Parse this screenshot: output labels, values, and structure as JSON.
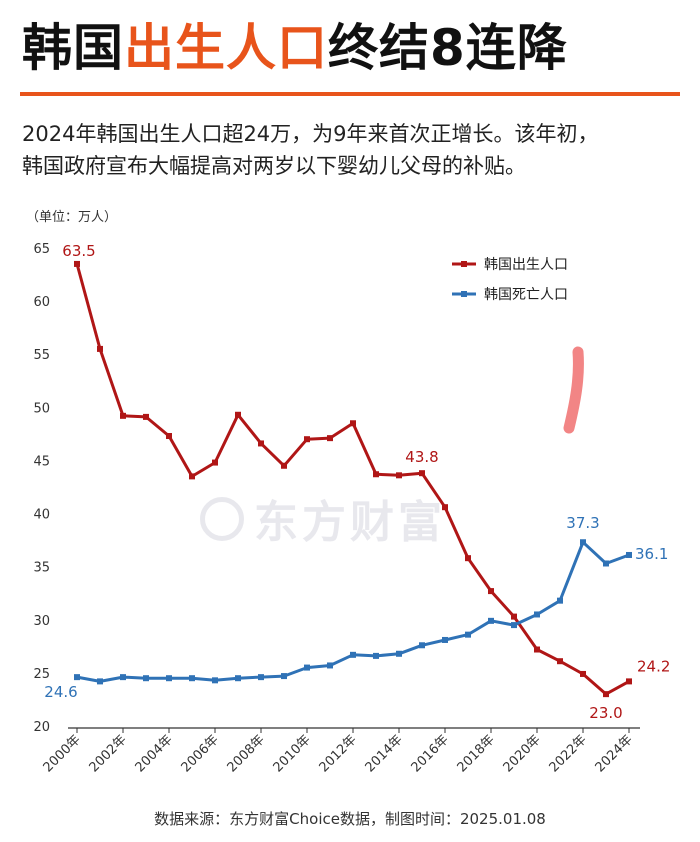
{
  "header": {
    "title_pre": "韩国",
    "title_accent": "出生人口",
    "title_post": "终结8连降",
    "subtitle_line1": "2024年韩国出生人口超24万，为9年来首次正增长。该年初，",
    "subtitle_line2": "韩国政府宣布大幅提高对两岁以下婴幼儿父母的补贴。"
  },
  "watermark": "东方财富",
  "footer": {
    "source": "数据来源：东方财富Choice数据，制图时间：2025.01.08"
  },
  "colors": {
    "births": "#b01616",
    "deaths": "#2f72b6",
    "accent": "#e8541b",
    "annotation": "#f07070"
  },
  "chart_data": {
    "type": "line",
    "unit_label": "（单位：万人）",
    "x": [
      "2000年",
      "2001年",
      "2002年",
      "2003年",
      "2004年",
      "2005年",
      "2006年",
      "2007年",
      "2008年",
      "2009年",
      "2010年",
      "2011年",
      "2012年",
      "2013年",
      "2014年",
      "2015年",
      "2016年",
      "2017年",
      "2018年",
      "2019年",
      "2020年",
      "2021年",
      "2022年",
      "2023年",
      "2024年"
    ],
    "xtick_labels": [
      "2000年",
      "2002年",
      "2004年",
      "2006年",
      "2008年",
      "2010年",
      "2012年",
      "2014年",
      "2016年",
      "2018年",
      "2020年",
      "2022年",
      "2024年"
    ],
    "ylim": [
      20,
      65
    ],
    "yticks": [
      "20",
      "25",
      "30",
      "35",
      "40",
      "45",
      "50",
      "55",
      "60",
      "65"
    ],
    "grid": false,
    "legend_position": "top-right",
    "series": [
      {
        "name": "韩国出生人口",
        "color": "#b01616",
        "values": [
          63.5,
          55.5,
          49.2,
          49.1,
          47.3,
          43.5,
          44.8,
          49.3,
          46.6,
          44.5,
          47.0,
          47.1,
          48.5,
          43.7,
          43.6,
          43.8,
          40.6,
          35.8,
          32.7,
          30.3,
          27.2,
          26.1,
          24.9,
          23.0,
          24.2
        ],
        "labels": [
          {
            "index": 0,
            "text": "63.5"
          },
          {
            "index": 15,
            "text": "43.8"
          },
          {
            "index": 23,
            "text": "23.0"
          },
          {
            "index": 24,
            "text": "24.2"
          }
        ]
      },
      {
        "name": "韩国死亡人口",
        "color": "#2f72b6",
        "values": [
          24.6,
          24.2,
          24.6,
          24.5,
          24.5,
          24.5,
          24.3,
          24.5,
          24.6,
          24.7,
          25.5,
          25.7,
          26.7,
          26.6,
          26.8,
          27.6,
          28.1,
          28.6,
          29.9,
          29.5,
          30.5,
          31.8,
          37.3,
          35.3,
          36.1
        ],
        "labels": [
          {
            "index": 0,
            "text": "24.6"
          },
          {
            "index": 22,
            "text": "37.3"
          },
          {
            "index": 24,
            "text": "36.1"
          }
        ]
      }
    ]
  }
}
